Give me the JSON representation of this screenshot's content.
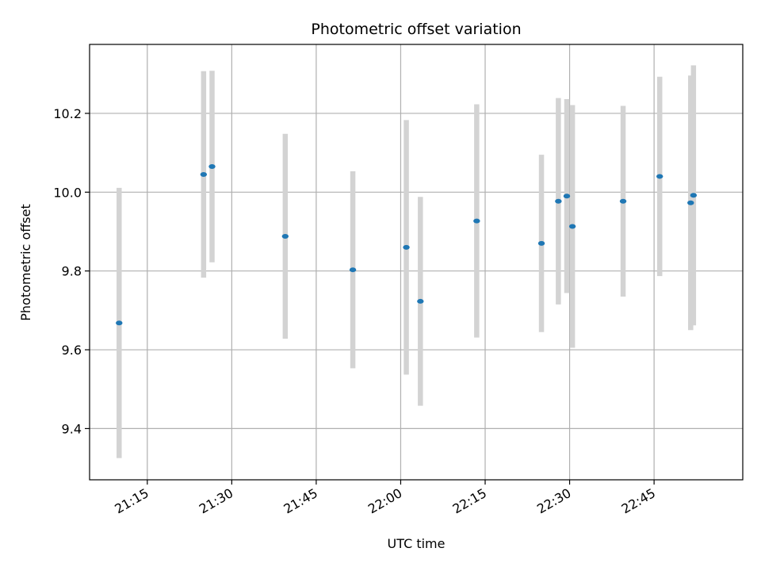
{
  "chart_data": {
    "type": "scatter",
    "title": "Photometric offset variation",
    "xlabel": "UTC time",
    "ylabel": "Photometric offset",
    "x_ticks": [
      "21:15",
      "21:30",
      "21:45",
      "22:00",
      "22:15",
      "22:30",
      "22:45"
    ],
    "y_ticks": [
      "9.4",
      "9.6",
      "9.8",
      "10.0",
      "10.2"
    ],
    "xlim": [
      "21:04:45",
      "23:00:45"
    ],
    "ylim": [
      9.27,
      10.375
    ],
    "grid": true,
    "point_color": "#1f77b4",
    "errorbar_color": "#d3d3d3",
    "points": [
      {
        "time": "21:10:00",
        "value": 9.668,
        "err": 0.343
      },
      {
        "time": "21:25:00",
        "value": 10.045,
        "err": 0.262
      },
      {
        "time": "21:26:30",
        "value": 10.065,
        "err": 0.243
      },
      {
        "time": "21:39:30",
        "value": 9.888,
        "err": 0.26
      },
      {
        "time": "21:51:30",
        "value": 9.803,
        "err": 0.25
      },
      {
        "time": "22:01:00",
        "value": 9.86,
        "err": 0.323
      },
      {
        "time": "22:03:30",
        "value": 9.723,
        "err": 0.265
      },
      {
        "time": "22:13:30",
        "value": 9.927,
        "err": 0.296
      },
      {
        "time": "22:25:00",
        "value": 9.87,
        "err": 0.225
      },
      {
        "time": "22:28:00",
        "value": 9.977,
        "err": 0.262
      },
      {
        "time": "22:29:30",
        "value": 9.99,
        "err": 0.246
      },
      {
        "time": "22:30:30",
        "value": 9.913,
        "err": 0.308
      },
      {
        "time": "22:39:30",
        "value": 9.977,
        "err": 0.242
      },
      {
        "time": "22:46:00",
        "value": 10.04,
        "err": 0.253
      },
      {
        "time": "22:51:30",
        "value": 9.973,
        "err": 0.323
      },
      {
        "time": "22:52:00",
        "value": 9.992,
        "err": 0.33
      }
    ]
  }
}
